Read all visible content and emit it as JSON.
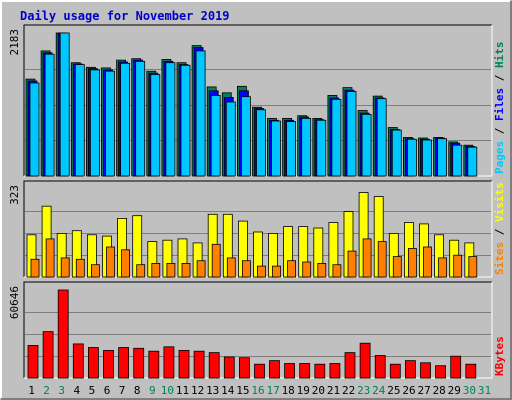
{
  "title": "Daily usage for November 2019",
  "colors": {
    "background": "#c0c0c0",
    "title": "#0000cc",
    "hits": "#00805c",
    "files": "#0000ff",
    "pages": "#00c8ff",
    "visits": "#ffff00",
    "sites": "#ff8000",
    "kbytes": "#ff0000",
    "weekend_label": "#00805c",
    "weekday_label": "#000000",
    "grid": "#7f7f7f",
    "frame_light": "#ffffff",
    "frame_dark": "#000000"
  },
  "chart_data": [
    {
      "type": "bar",
      "name": "hits-files-pages",
      "ymax_label": "2183",
      "ylim": [
        0,
        2183
      ],
      "grid": true,
      "legend": [
        {
          "text": "Pages",
          "color_key": "pages"
        },
        {
          "text": "Files",
          "color_key": "files"
        },
        {
          "text": "Hits",
          "color_key": "hits"
        }
      ],
      "categories": [
        "1",
        "2",
        "3",
        "4",
        "5",
        "6",
        "7",
        "8",
        "9",
        "10",
        "11",
        "12",
        "13",
        "14",
        "15",
        "16",
        "17",
        "18",
        "19",
        "20",
        "21",
        "22",
        "23",
        "24",
        "25",
        "26",
        "27",
        "28",
        "29",
        "30",
        "31"
      ],
      "series": [
        {
          "name": "Hits",
          "color_key": "hits",
          "values": [
            1480,
            1910,
            2183,
            1730,
            1660,
            1650,
            1770,
            1790,
            1600,
            1780,
            1730,
            1990,
            1360,
            1270,
            1370,
            1050,
            880,
            880,
            920,
            880,
            1230,
            1350,
            1000,
            1220,
            740,
            590,
            580,
            590,
            520,
            470,
            null
          ]
        },
        {
          "name": "Files",
          "color_key": "files",
          "values": [
            1450,
            1880,
            2183,
            1710,
            1640,
            1620,
            1740,
            1770,
            1570,
            1750,
            1700,
            1960,
            1300,
            1200,
            1300,
            1030,
            850,
            850,
            900,
            860,
            1190,
            1310,
            960,
            1190,
            710,
            570,
            560,
            580,
            500,
            450,
            null
          ]
        },
        {
          "name": "Pages",
          "color_key": "pages",
          "values": [
            1420,
            1860,
            2183,
            1700,
            1620,
            1600,
            1720,
            1750,
            1550,
            1730,
            1690,
            1910,
            1230,
            1130,
            1210,
            1010,
            840,
            830,
            880,
            850,
            1170,
            1290,
            940,
            1180,
            700,
            560,
            550,
            570,
            470,
            440,
            null
          ]
        }
      ]
    },
    {
      "type": "bar",
      "name": "visits-sites",
      "ymax_label": "323",
      "ylim": [
        0,
        323
      ],
      "grid": true,
      "legend": [
        {
          "text": "Sites",
          "color_key": "sites"
        },
        {
          "text": "Visits",
          "color_key": "visits"
        }
      ],
      "categories": [
        "1",
        "2",
        "3",
        "4",
        "5",
        "6",
        "7",
        "8",
        "9",
        "10",
        "11",
        "12",
        "13",
        "14",
        "15",
        "16",
        "17",
        "18",
        "19",
        "20",
        "21",
        "22",
        "23",
        "24",
        "25",
        "26",
        "27",
        "28",
        "29",
        "30",
        "31"
      ],
      "series": [
        {
          "name": "Visits",
          "color_key": "visits",
          "values": [
            155,
            260,
            160,
            170,
            155,
            150,
            215,
            225,
            130,
            135,
            140,
            125,
            230,
            230,
            205,
            165,
            160,
            185,
            185,
            180,
            200,
            240,
            310,
            295,
            160,
            200,
            195,
            155,
            135,
            125,
            null
          ]
        },
        {
          "name": "Sites",
          "color_key": "sites",
          "values": [
            65,
            140,
            70,
            65,
            45,
            110,
            100,
            45,
            50,
            50,
            50,
            60,
            120,
            70,
            60,
            40,
            40,
            60,
            55,
            50,
            45,
            95,
            140,
            130,
            75,
            105,
            110,
            70,
            80,
            75,
            null
          ]
        }
      ]
    },
    {
      "type": "bar",
      "name": "kbytes",
      "ymax_label": "60646",
      "ylim": [
        0,
        60646
      ],
      "grid": true,
      "legend": [
        {
          "text": "KBytes",
          "color_key": "kbytes"
        }
      ],
      "categories": [
        "1",
        "2",
        "3",
        "4",
        "5",
        "6",
        "7",
        "8",
        "9",
        "10",
        "11",
        "12",
        "13",
        "14",
        "15",
        "16",
        "17",
        "18",
        "19",
        "20",
        "21",
        "22",
        "23",
        "24",
        "25",
        "26",
        "27",
        "28",
        "29",
        "30",
        "31"
      ],
      "series": [
        {
          "name": "KBytes",
          "color_key": "kbytes",
          "values": [
            22500,
            32000,
            60646,
            23500,
            21000,
            19000,
            21000,
            20500,
            18500,
            21500,
            19000,
            18500,
            17500,
            14500,
            14000,
            9500,
            12000,
            10000,
            10000,
            9500,
            10000,
            17500,
            24000,
            15500,
            9500,
            12000,
            10500,
            8500,
            15000,
            9500,
            null
          ]
        }
      ]
    }
  ],
  "x_labels": [
    {
      "text": "1",
      "weekend": false
    },
    {
      "text": "2",
      "weekend": true
    },
    {
      "text": "3",
      "weekend": true
    },
    {
      "text": "4",
      "weekend": false
    },
    {
      "text": "5",
      "weekend": false
    },
    {
      "text": "6",
      "weekend": false
    },
    {
      "text": "7",
      "weekend": false
    },
    {
      "text": "8",
      "weekend": false
    },
    {
      "text": "9",
      "weekend": true
    },
    {
      "text": "10",
      "weekend": true
    },
    {
      "text": "11",
      "weekend": false
    },
    {
      "text": "12",
      "weekend": false
    },
    {
      "text": "13",
      "weekend": false
    },
    {
      "text": "14",
      "weekend": false
    },
    {
      "text": "15",
      "weekend": false
    },
    {
      "text": "16",
      "weekend": true
    },
    {
      "text": "17",
      "weekend": true
    },
    {
      "text": "18",
      "weekend": false
    },
    {
      "text": "19",
      "weekend": false
    },
    {
      "text": "20",
      "weekend": false
    },
    {
      "text": "21",
      "weekend": false
    },
    {
      "text": "22",
      "weekend": false
    },
    {
      "text": "23",
      "weekend": true
    },
    {
      "text": "24",
      "weekend": true
    },
    {
      "text": "25",
      "weekend": false
    },
    {
      "text": "26",
      "weekend": false
    },
    {
      "text": "27",
      "weekend": false
    },
    {
      "text": "28",
      "weekend": false
    },
    {
      "text": "29",
      "weekend": false
    },
    {
      "text": "30",
      "weekend": true
    },
    {
      "text": "31",
      "weekend": true
    }
  ]
}
